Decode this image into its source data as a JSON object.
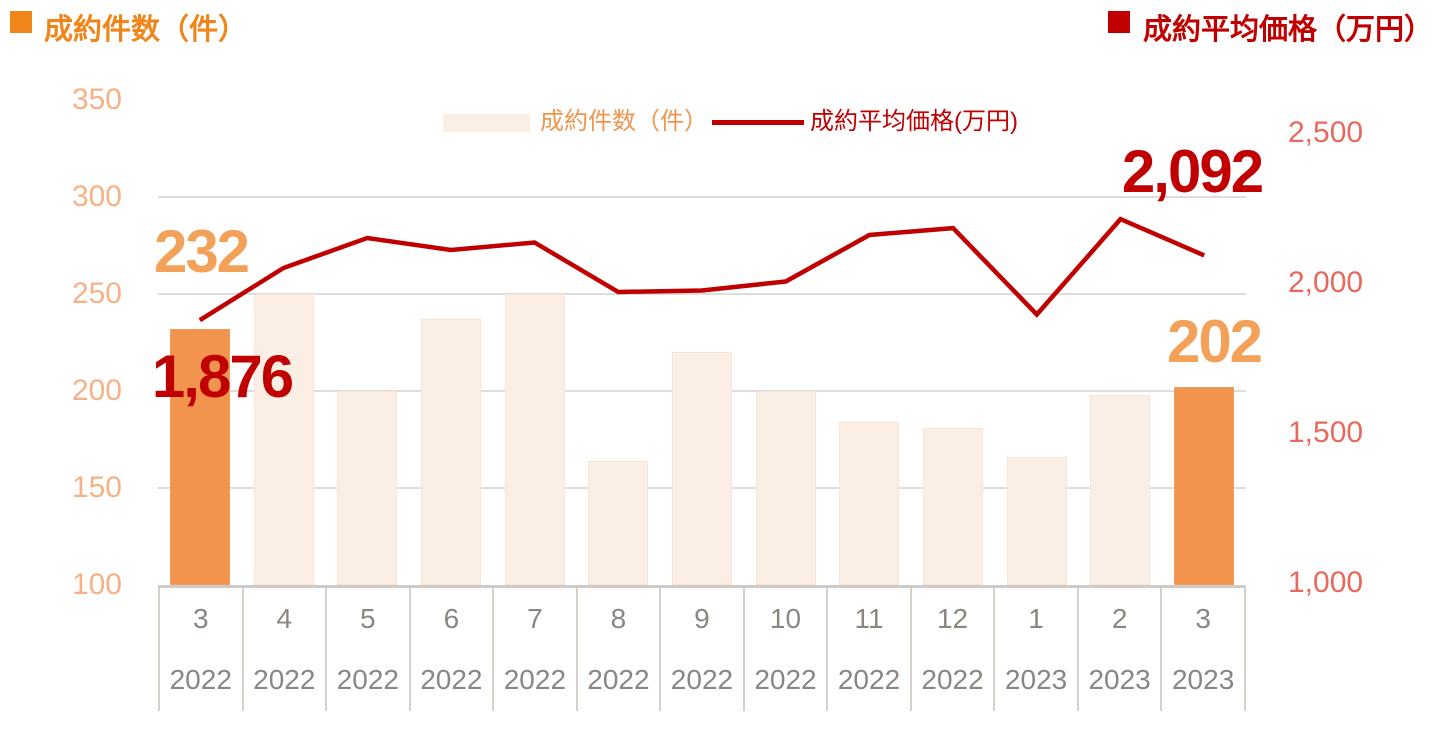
{
  "header": {
    "left_title": "成約件数（件）",
    "right_title": "成約平均価格（万円）"
  },
  "legend": {
    "bar_label": "成約件数（件）",
    "line_label": "成約平均価格(万円)"
  },
  "annotations": {
    "first_bar_label": "232",
    "first_line_label": "1,876",
    "last_line_label": "2,092",
    "last_bar_label": "202"
  },
  "colors": {
    "orange_title": "#F08519",
    "orange_data_label": "#F3A158",
    "orange_axis_tick": "#F6B286",
    "bar_highlight": "#F2944D",
    "bar_normal": "#FBEFE5",
    "dark_red": "#C00000",
    "red_axis_tick": "#E8695B",
    "gridline": "#DEDDDC",
    "x_axis_text": "#8C8681",
    "x_axis_border": "#D6D0CA"
  },
  "chart_data": {
    "type": "combo",
    "categories_month": [
      "3",
      "4",
      "5",
      "6",
      "7",
      "8",
      "9",
      "10",
      "11",
      "12",
      "1",
      "2",
      "3"
    ],
    "categories_year": [
      "2022",
      "2022",
      "2022",
      "2022",
      "2022",
      "2022",
      "2022",
      "2022",
      "2022",
      "2022",
      "2023",
      "2023",
      "2023"
    ],
    "series": [
      {
        "name": "成約件数（件）",
        "type": "bar",
        "axis": "left",
        "values": [
          232,
          250,
          200,
          237,
          250,
          164,
          220,
          200,
          184,
          181,
          166,
          198,
          202
        ],
        "highlight_indices": [
          0,
          12
        ]
      },
      {
        "name": "成約平均価格(万円)",
        "type": "line",
        "axis": "right",
        "values": [
          1876,
          2050,
          2150,
          2110,
          2135,
          1970,
          1975,
          2005,
          2160,
          2183,
          1895,
          2213,
          2092
        ]
      }
    ],
    "left_axis": {
      "title": "成約件数（件）",
      "ticks": [
        350,
        300,
        250,
        200,
        150,
        100
      ],
      "range": [
        100,
        350
      ]
    },
    "right_axis": {
      "title": "成約平均価格（万円）",
      "ticks": [
        2500,
        2000,
        1500,
        1000
      ],
      "range": [
        1000,
        2500
      ]
    },
    "gridlines_at": [
      300,
      250,
      200,
      150
    ],
    "grid": true,
    "legend_position": "top-center"
  }
}
